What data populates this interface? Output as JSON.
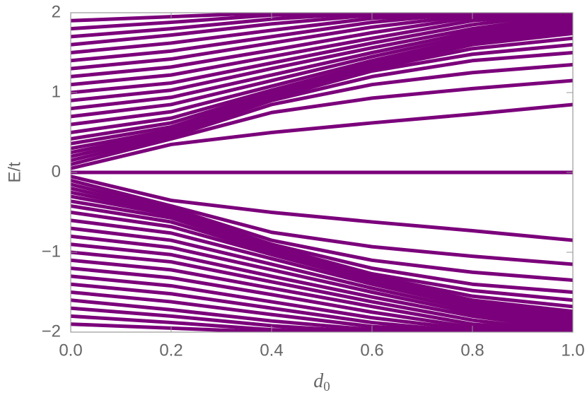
{
  "chart_data": {
    "type": "line",
    "xlabel": "d",
    "xlabel_subscript": "0",
    "ylabel": "E/t",
    "color": "#7b007b",
    "x": [
      0,
      0.2,
      0.4,
      0.6,
      0.8,
      1
    ],
    "xlim": [
      0,
      1
    ],
    "ylim": [
      -2,
      2
    ],
    "xticks": [
      {
        "value": 0,
        "label": "0.0"
      },
      0.2,
      0.4,
      0.6,
      0.8,
      {
        "value": 1,
        "label": "1.0"
      }
    ],
    "yticks": [
      {
        "value": -2,
        "label": "−2"
      },
      {
        "value": -1,
        "label": "−1"
      },
      0,
      1,
      2
    ],
    "series": [
      {
        "values": [
          0,
          0,
          0,
          0,
          0,
          0
        ]
      },
      {
        "values": [
          0.05,
          0.35,
          0.5,
          0.62,
          0.73,
          0.85
        ]
      },
      {
        "values": [
          0.1,
          0.42,
          0.75,
          0.93,
          1.05,
          1.15
        ]
      },
      {
        "values": [
          0.15,
          0.45,
          0.85,
          1.1,
          1.25,
          1.35
        ]
      },
      {
        "values": [
          0.2,
          0.48,
          0.9,
          1.2,
          1.4,
          1.5
        ]
      },
      {
        "values": [
          0.25,
          0.5,
          0.93,
          1.27,
          1.48,
          1.6
        ]
      },
      {
        "values": [
          0.3,
          0.53,
          0.95,
          1.3,
          1.55,
          1.68
        ]
      },
      {
        "values": [
          0.36,
          0.57,
          0.97,
          1.32,
          1.6,
          1.74
        ]
      },
      {
        "values": [
          0.42,
          0.62,
          1.0,
          1.34,
          1.62,
          1.78
        ]
      },
      {
        "values": [
          0.5,
          0.68,
          1.03,
          1.36,
          1.64,
          1.82
        ]
      },
      {
        "values": [
          0.6,
          0.76,
          1.08,
          1.4,
          1.68,
          1.86
        ]
      },
      {
        "values": [
          0.7,
          0.85,
          1.15,
          1.45,
          1.72,
          1.9
        ]
      },
      {
        "values": [
          0.8,
          0.94,
          1.22,
          1.5,
          1.76,
          1.94
        ]
      },
      {
        "values": [
          0.9,
          1.03,
          1.3,
          1.56,
          1.8,
          1.97
        ]
      },
      {
        "values": [
          1.0,
          1.12,
          1.37,
          1.62,
          1.85,
          2.0
        ]
      },
      {
        "values": [
          1.1,
          1.22,
          1.45,
          1.68,
          1.9,
          2.0
        ]
      },
      {
        "values": [
          1.2,
          1.32,
          1.53,
          1.75,
          1.94,
          2.0
        ]
      },
      {
        "values": [
          1.3,
          1.42,
          1.62,
          1.82,
          1.97,
          2.0
        ]
      },
      {
        "values": [
          1.4,
          1.52,
          1.7,
          1.88,
          2.0,
          2.0
        ]
      },
      {
        "values": [
          1.5,
          1.62,
          1.78,
          1.93,
          2.0,
          2.0
        ]
      },
      {
        "values": [
          1.6,
          1.72,
          1.86,
          1.97,
          2.0,
          2.0
        ]
      },
      {
        "values": [
          1.7,
          1.8,
          1.92,
          2.0,
          2.0,
          2.0
        ]
      },
      {
        "values": [
          1.8,
          1.88,
          1.97,
          2.0,
          2.0,
          2.0
        ]
      },
      {
        "values": [
          1.9,
          1.95,
          2.0,
          2.0,
          2.0,
          2.0
        ]
      },
      {
        "values": [
          -0.05,
          -0.35,
          -0.5,
          -0.62,
          -0.73,
          -0.85
        ]
      },
      {
        "values": [
          -0.1,
          -0.42,
          -0.75,
          -0.93,
          -1.05,
          -1.15
        ]
      },
      {
        "values": [
          -0.15,
          -0.45,
          -0.85,
          -1.1,
          -1.25,
          -1.35
        ]
      },
      {
        "values": [
          -0.2,
          -0.48,
          -0.9,
          -1.2,
          -1.4,
          -1.5
        ]
      },
      {
        "values": [
          -0.25,
          -0.5,
          -0.93,
          -1.27,
          -1.48,
          -1.6
        ]
      },
      {
        "values": [
          -0.3,
          -0.53,
          -0.95,
          -1.3,
          -1.55,
          -1.68
        ]
      },
      {
        "values": [
          -0.36,
          -0.57,
          -0.97,
          -1.32,
          -1.6,
          -1.74
        ]
      },
      {
        "values": [
          -0.42,
          -0.62,
          -1.0,
          -1.34,
          -1.62,
          -1.78
        ]
      },
      {
        "values": [
          -0.5,
          -0.68,
          -1.03,
          -1.36,
          -1.64,
          -1.82
        ]
      },
      {
        "values": [
          -0.6,
          -0.76,
          -1.08,
          -1.4,
          -1.68,
          -1.86
        ]
      },
      {
        "values": [
          -0.7,
          -0.85,
          -1.15,
          -1.45,
          -1.72,
          -1.9
        ]
      },
      {
        "values": [
          -0.8,
          -0.94,
          -1.22,
          -1.5,
          -1.76,
          -1.94
        ]
      },
      {
        "values": [
          -0.9,
          -1.03,
          -1.3,
          -1.56,
          -1.8,
          -1.97
        ]
      },
      {
        "values": [
          -1.0,
          -1.12,
          -1.37,
          -1.62,
          -1.85,
          -2.0
        ]
      },
      {
        "values": [
          -1.1,
          -1.22,
          -1.45,
          -1.68,
          -1.9,
          -2.0
        ]
      },
      {
        "values": [
          -1.2,
          -1.32,
          -1.53,
          -1.75,
          -1.94,
          -2.0
        ]
      },
      {
        "values": [
          -1.3,
          -1.42,
          -1.62,
          -1.82,
          -1.97,
          -2.0
        ]
      },
      {
        "values": [
          -1.4,
          -1.52,
          -1.7,
          -1.88,
          -2.0,
          -2.0
        ]
      },
      {
        "values": [
          -1.5,
          -1.62,
          -1.78,
          -1.93,
          -2.0,
          -2.0
        ]
      },
      {
        "values": [
          -1.6,
          -1.72,
          -1.86,
          -1.97,
          -2.0,
          -2.0
        ]
      },
      {
        "values": [
          -1.7,
          -1.8,
          -1.92,
          -2.0,
          -2.0,
          -2.0
        ]
      },
      {
        "values": [
          -1.8,
          -1.88,
          -1.97,
          -2.0,
          -2.0,
          -2.0
        ]
      },
      {
        "values": [
          -1.9,
          -1.95,
          -2.0,
          -2.0,
          -2.0,
          -2.0
        ]
      }
    ]
  }
}
